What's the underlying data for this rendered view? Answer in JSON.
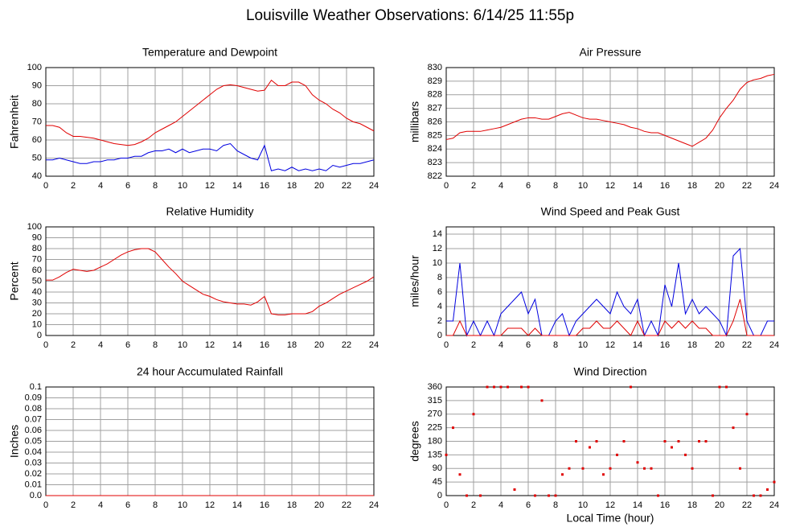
{
  "title": "Louisville Weather Observations: 6/14/25 11:55p",
  "chart_data": [
    {
      "type": "line",
      "title": "Temperature and Dewpoint",
      "ylabel": "Fahrenheit",
      "x": [
        0,
        0.5,
        1,
        1.5,
        2,
        2.5,
        3,
        3.5,
        4,
        4.5,
        5,
        5.5,
        6,
        6.5,
        7,
        7.5,
        8,
        8.5,
        9,
        9.5,
        10,
        10.5,
        11,
        11.5,
        12,
        12.5,
        13,
        13.5,
        14,
        14.5,
        15,
        15.5,
        16,
        16.5,
        17,
        17.5,
        18,
        18.5,
        19,
        19.5,
        20,
        20.5,
        21,
        21.5,
        22,
        22.5,
        23,
        23.5,
        24
      ],
      "series": [
        {
          "color": "#e00000",
          "values": [
            68,
            68,
            67,
            64,
            62,
            62,
            61.5,
            61,
            60,
            59,
            58,
            57.5,
            57,
            57.5,
            59,
            61,
            64,
            66,
            68,
            70,
            73,
            76,
            79,
            82,
            85,
            88,
            90,
            90.5,
            90,
            89,
            88,
            87,
            87.5,
            93,
            90,
            90,
            92,
            92,
            90,
            85,
            82,
            80,
            77,
            75,
            72,
            70,
            69,
            67,
            65
          ]
        },
        {
          "color": "#0000e0",
          "values": [
            49,
            49,
            50,
            49,
            48,
            47,
            47,
            48,
            48,
            49,
            49,
            50,
            50,
            51,
            51,
            53,
            54,
            54,
            55,
            53,
            55,
            53,
            54,
            55,
            55,
            54,
            57,
            58,
            54,
            52,
            50,
            49,
            57,
            43,
            44,
            43,
            45,
            43,
            44,
            43,
            44,
            43,
            46,
            45,
            46,
            47,
            47,
            48,
            49
          ]
        }
      ],
      "xlim": [
        0,
        24
      ],
      "xticks": [
        0,
        2,
        4,
        6,
        8,
        10,
        12,
        14,
        16,
        18,
        20,
        22,
        24
      ],
      "ylim": [
        40,
        100
      ],
      "yticks": [
        40,
        50,
        60,
        70,
        80,
        90,
        100
      ],
      "grid": true
    },
    {
      "type": "line",
      "title": "Air Pressure",
      "ylabel": "millibars",
      "x": [
        0,
        0.5,
        1,
        1.5,
        2,
        2.5,
        3,
        3.5,
        4,
        4.5,
        5,
        5.5,
        6,
        6.5,
        7,
        7.5,
        8,
        8.5,
        9,
        9.5,
        10,
        10.5,
        11,
        11.5,
        12,
        12.5,
        13,
        13.5,
        14,
        14.5,
        15,
        15.5,
        16,
        16.5,
        17,
        17.5,
        18,
        18.5,
        19,
        19.5,
        20,
        20.5,
        21,
        21.5,
        22,
        22.5,
        23,
        23.5,
        24
      ],
      "series": [
        {
          "color": "#e00000",
          "values": [
            824.7,
            824.8,
            825.2,
            825.3,
            825.3,
            825.3,
            825.4,
            825.5,
            825.6,
            825.8,
            826,
            826.2,
            826.3,
            826.3,
            826.2,
            826.2,
            826.4,
            826.6,
            826.7,
            826.5,
            826.3,
            826.2,
            826.2,
            826.1,
            826,
            825.9,
            825.8,
            825.6,
            825.5,
            825.3,
            825.2,
            825.2,
            825,
            824.8,
            824.6,
            824.4,
            824.2,
            824.5,
            824.8,
            825.4,
            826.3,
            827,
            827.6,
            828.4,
            828.9,
            829.1,
            829.2,
            829.4,
            829.5
          ]
        }
      ],
      "xlim": [
        0,
        24
      ],
      "xticks": [
        0,
        2,
        4,
        6,
        8,
        10,
        12,
        14,
        16,
        18,
        20,
        22,
        24
      ],
      "ylim": [
        822,
        830
      ],
      "yticks": [
        822,
        823,
        824,
        825,
        826,
        827,
        828,
        829,
        830
      ],
      "grid": true
    },
    {
      "type": "line",
      "title": "Relative Humidity",
      "ylabel": "Percent",
      "x": [
        0,
        0.5,
        1,
        1.5,
        2,
        2.5,
        3,
        3.5,
        4,
        4.5,
        5,
        5.5,
        6,
        6.5,
        7,
        7.5,
        8,
        8.5,
        9,
        9.5,
        10,
        10.5,
        11,
        11.5,
        12,
        12.5,
        13,
        13.5,
        14,
        14.5,
        15,
        15.5,
        16,
        16.5,
        17,
        17.5,
        18,
        18.5,
        19,
        19.5,
        20,
        20.5,
        21,
        21.5,
        22,
        22.5,
        23,
        23.5,
        24
      ],
      "series": [
        {
          "color": "#e00000",
          "values": [
            51,
            51,
            54,
            58,
            61,
            60,
            59,
            60,
            63,
            66,
            70,
            74,
            77,
            79,
            80,
            80,
            77,
            70,
            63,
            57,
            50,
            46,
            42,
            38,
            36,
            33,
            31,
            30,
            29,
            29,
            28,
            31,
            36,
            20,
            19,
            19,
            20,
            20,
            20,
            22,
            27,
            30,
            34,
            38,
            41,
            44,
            47,
            50,
            54
          ]
        }
      ],
      "xlim": [
        0,
        24
      ],
      "xticks": [
        0,
        2,
        4,
        6,
        8,
        10,
        12,
        14,
        16,
        18,
        20,
        22,
        24
      ],
      "ylim": [
        0,
        100
      ],
      "yticks": [
        0,
        10,
        20,
        30,
        40,
        50,
        60,
        70,
        80,
        90,
        100
      ],
      "grid": true
    },
    {
      "type": "line",
      "title": "Wind Speed and Peak Gust",
      "ylabel": "miles/hour",
      "x": [
        0,
        0.5,
        1,
        1.5,
        2,
        2.5,
        3,
        3.5,
        4,
        4.5,
        5,
        5.5,
        6,
        6.5,
        7,
        7.5,
        8,
        8.5,
        9,
        9.5,
        10,
        10.5,
        11,
        11.5,
        12,
        12.5,
        13,
        13.5,
        14,
        14.5,
        15,
        15.5,
        16,
        16.5,
        17,
        17.5,
        18,
        18.5,
        19,
        19.5,
        20,
        20.5,
        21,
        21.5,
        22,
        22.5,
        23,
        23.5,
        24
      ],
      "series": [
        {
          "color": "#0000e0",
          "values": [
            2,
            2,
            10,
            0,
            2,
            0,
            2,
            0,
            3,
            4,
            5,
            6,
            3,
            5,
            0,
            0,
            2,
            3,
            0,
            2,
            3,
            4,
            5,
            4,
            3,
            6,
            4,
            3,
            5,
            0,
            2,
            0,
            7,
            4,
            10,
            3,
            5,
            3,
            4,
            3,
            2,
            0,
            11,
            12,
            2,
            0,
            0,
            2,
            2
          ]
        },
        {
          "color": "#e00000",
          "values": [
            0,
            0,
            2,
            0,
            0,
            0,
            0,
            0,
            0,
            1,
            1,
            1,
            0,
            1,
            0,
            0,
            0,
            0,
            0,
            0,
            1,
            1,
            2,
            1,
            1,
            2,
            1,
            0,
            2,
            0,
            0,
            0,
            2,
            1,
            2,
            1,
            2,
            1,
            1,
            0,
            0,
            0,
            2,
            5,
            0,
            0,
            0,
            0,
            0
          ]
        }
      ],
      "xlim": [
        0,
        24
      ],
      "xticks": [
        0,
        2,
        4,
        6,
        8,
        10,
        12,
        14,
        16,
        18,
        20,
        22,
        24
      ],
      "ylim": [
        0,
        15
      ],
      "yticks": [
        0,
        2,
        4,
        6,
        8,
        10,
        12,
        14
      ],
      "grid": true
    },
    {
      "type": "line",
      "title": "24 hour Accumulated Rainfall",
      "ylabel": "Inches",
      "x": [
        0,
        24
      ],
      "series": [
        {
          "color": "#e00000",
          "values": [
            0,
            0
          ]
        }
      ],
      "xlim": [
        0,
        24
      ],
      "xticks": [
        0,
        2,
        4,
        6,
        8,
        10,
        12,
        14,
        16,
        18,
        20,
        22,
        24
      ],
      "ylim": [
        0,
        0.1
      ],
      "yticks": [
        {
          "value": 0,
          "label": "0.0"
        },
        0.01,
        0.02,
        0.03,
        0.04,
        0.05,
        0.06,
        0.07,
        0.08,
        0.09,
        0.1
      ],
      "grid": true
    },
    {
      "type": "scatter",
      "title": "Wind Direction",
      "ylabel": "degrees",
      "xlabel": "Local Time (hour)",
      "x": [
        0,
        0.5,
        1,
        1.5,
        2,
        2.5,
        3,
        3.5,
        4,
        4.5,
        5,
        5.5,
        6,
        6.5,
        7,
        7.5,
        8,
        8.5,
        9,
        9.5,
        10,
        10.5,
        11,
        11.5,
        12,
        12.5,
        13,
        13.5,
        14,
        14.5,
        15,
        15.5,
        16,
        16.5,
        17,
        17.5,
        18,
        18.5,
        19,
        19.5,
        20,
        20.5,
        21,
        21.5,
        22,
        22.5,
        23,
        23.5,
        24
      ],
      "series": [
        {
          "color": "#e00000",
          "values": [
            135,
            225,
            70,
            0,
            270,
            0,
            360,
            360,
            360,
            360,
            20,
            360,
            360,
            0,
            315,
            0,
            0,
            70,
            90,
            180,
            90,
            160,
            180,
            70,
            90,
            135,
            180,
            360,
            110,
            90,
            90,
            0,
            180,
            160,
            180,
            135,
            90,
            180,
            180,
            0,
            360,
            360,
            225,
            90,
            270,
            0,
            0,
            20,
            45
          ]
        }
      ],
      "xlim": [
        0,
        24
      ],
      "xticks": [
        0,
        2,
        4,
        6,
        8,
        10,
        12,
        14,
        16,
        18,
        20,
        22,
        24
      ],
      "ylim": [
        0,
        360
      ],
      "yticks": [
        0,
        45,
        90,
        135,
        180,
        225,
        270,
        315,
        360
      ],
      "grid": true
    }
  ]
}
